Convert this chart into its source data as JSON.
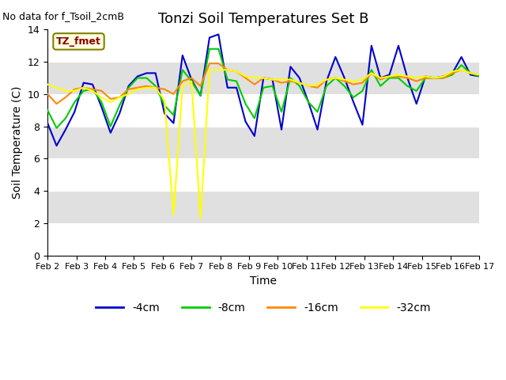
{
  "title": "Tonzi Soil Temperatures Set B",
  "xlabel": "Time",
  "ylabel": "Soil Temperature (C)",
  "no_data_text": "No data for f_Tsoil_2cmB",
  "tz_label": "TZ_fmet",
  "ylim": [
    0,
    14
  ],
  "yticks": [
    0,
    2,
    4,
    6,
    8,
    10,
    12,
    14
  ],
  "xtick_labels": [
    "Feb 2",
    "Feb 3",
    "Feb 4",
    "Feb 5",
    "Feb 6",
    "Feb 7",
    "Feb 8",
    "Feb 9",
    "Feb 10",
    "Feb 11",
    "Feb 12",
    "Feb 13",
    "Feb 14",
    "Feb 15",
    "Feb 16",
    "Feb 17"
  ],
  "plot_bg_color": "#e0e0e0",
  "white_stripe_ranges": [
    [
      0,
      2
    ],
    [
      4,
      6
    ],
    [
      8,
      10
    ],
    [
      12,
      14
    ]
  ],
  "line_colors": {
    "4cm": "#0000cc",
    "8cm": "#00cc00",
    "16cm": "#ff8800",
    "32cm": "#ffff00"
  },
  "legend_labels": [
    "-4cm",
    "-8cm",
    "-16cm",
    "-32cm"
  ],
  "legend_colors": [
    "#0000cc",
    "#00cc00",
    "#ff8800",
    "#ffff00"
  ],
  "data_4cm": [
    8.2,
    6.8,
    7.8,
    8.9,
    10.7,
    10.6,
    9.2,
    7.6,
    8.8,
    10.5,
    11.1,
    11.3,
    11.3,
    8.8,
    8.2,
    12.4,
    10.9,
    9.9,
    13.5,
    13.7,
    10.4,
    10.4,
    8.3,
    7.4,
    11.0,
    10.9,
    7.8,
    11.7,
    11.0,
    9.5,
    7.8,
    10.8,
    12.3,
    11.0,
    9.5,
    8.1,
    13.0,
    11.0,
    11.2,
    13.0,
    11.0,
    9.4,
    11.1,
    11.0,
    11.1,
    11.3,
    12.3,
    11.2,
    11.1
  ],
  "data_8cm": [
    9.0,
    7.9,
    8.5,
    9.5,
    10.2,
    10.3,
    9.5,
    8.0,
    9.3,
    10.4,
    11.0,
    11.0,
    10.5,
    9.3,
    8.7,
    11.5,
    10.8,
    9.9,
    12.8,
    12.8,
    10.9,
    10.8,
    9.4,
    8.5,
    10.4,
    10.5,
    8.9,
    11.0,
    10.5,
    9.5,
    8.9,
    10.5,
    11.0,
    10.5,
    9.8,
    10.2,
    11.5,
    10.5,
    11.0,
    11.0,
    10.5,
    10.2,
    11.0,
    11.0,
    11.0,
    11.2,
    11.8,
    11.3,
    11.1
  ],
  "data_16cm": [
    10.0,
    9.4,
    9.8,
    10.3,
    10.4,
    10.3,
    10.2,
    9.7,
    9.8,
    10.3,
    10.4,
    10.5,
    10.4,
    10.3,
    10.0,
    10.8,
    11.0,
    10.5,
    11.9,
    11.9,
    11.5,
    11.4,
    11.0,
    10.6,
    11.0,
    10.9,
    10.7,
    10.8,
    10.7,
    10.5,
    10.4,
    10.9,
    11.0,
    10.8,
    10.6,
    10.7,
    11.3,
    10.9,
    11.1,
    11.1,
    11.0,
    10.8,
    11.0,
    11.0,
    11.0,
    11.3,
    11.5,
    11.3,
    11.2
  ],
  "data_32cm": [
    10.6,
    10.4,
    10.2,
    10.2,
    10.4,
    10.2,
    9.8,
    9.5,
    9.8,
    10.0,
    10.3,
    10.4,
    10.4,
    9.6,
    2.5,
    10.5,
    10.8,
    2.3,
    11.5,
    11.5,
    11.5,
    11.4,
    11.1,
    11.0,
    11.0,
    10.9,
    10.9,
    10.9,
    10.7,
    10.5,
    10.6,
    10.9,
    11.0,
    10.9,
    10.8,
    10.9,
    11.3,
    11.0,
    11.1,
    11.2,
    11.1,
    11.0,
    11.1,
    11.0,
    11.1,
    11.4,
    11.5,
    11.3,
    11.2
  ]
}
